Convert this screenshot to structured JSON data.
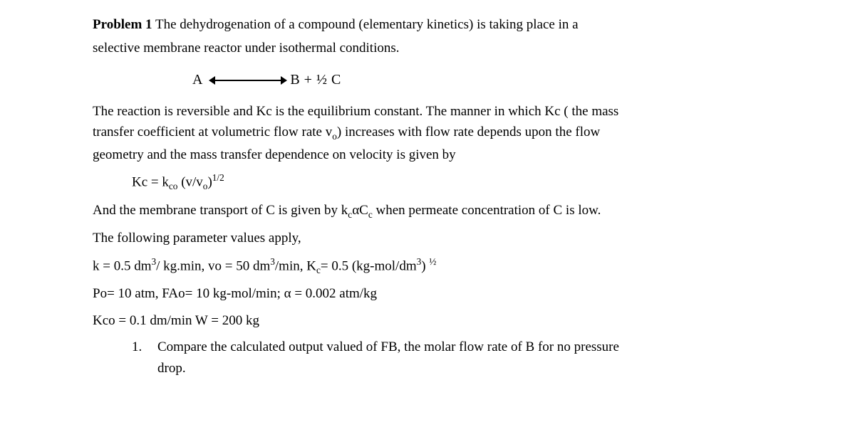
{
  "heading_label": "Problem 1",
  "heading_text_a": "The dehydrogenation of a compound (elementary kinetics) is taking place in a",
  "heading_text_b": "selective membrane reactor under isothermal conditions.",
  "reaction_left": "A",
  "reaction_right": "B + ½ C",
  "para2a": "The reaction is reversible and Kc is the equilibrium constant. The manner in which Kc ( the mass",
  "para2b": "transfer coefficient at volumetric flow rate v",
  "para2b_sub": "o",
  "para2b_tail": ") increases with flow rate depends upon the flow",
  "para2c": "geometry and the mass transfer dependence on velocity is given by",
  "eq1_lhs": "Kc = k",
  "eq1_sub": "co",
  "eq1_mid": " (v/v",
  "eq1_sub2": "o",
  "eq1_rparen": ")",
  "eq1_sup": "1/2",
  "para3a": "And the membrane transport of C is given by k",
  "para3a_sub": "c",
  "para3a_mid": "αC",
  "para3a_sub2": "c",
  "para3a_tail": " when permeate concentration of C is low.",
  "para4": "The following parameter values apply,",
  "params1_a": "k = 0.5 dm",
  "params1_a_sup": "3",
  "params1_a_tail": "/ kg.min,   vo = 50 dm",
  "params1_b_sup": "3",
  "params1_b_tail": "/min,   K",
  "params1_c_sub": "c",
  "params1_c_tail": "= 0.5 (kg-mol/dm",
  "params1_d_sup": "3",
  "params1_d_tail": ") ",
  "params1_half": "½",
  "params2": "Po= 10 atm, FAo= 10 kg-mol/min; α = 0.002 atm/kg",
  "params3": "Kco = 0.1 dm/min W = 200 kg",
  "q_num": "1.",
  "q_text_a": "Compare the calculated output valued of FB, the molar flow rate of B for no pressure",
  "q_text_b": "drop."
}
